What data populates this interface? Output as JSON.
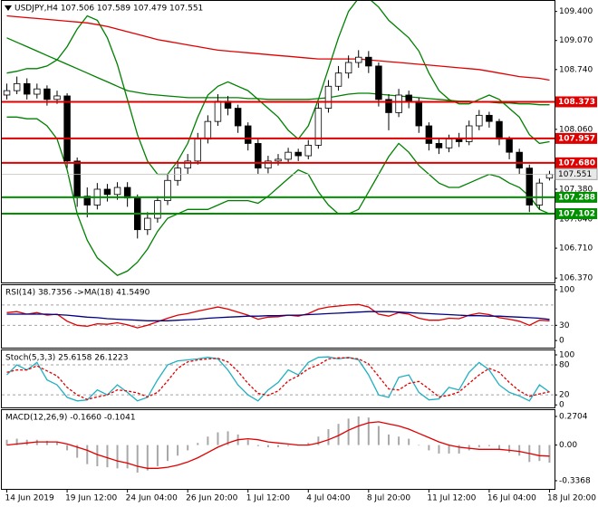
{
  "chart_data": [
    {
      "type": "candlestick",
      "title": "USDJPY,H4  107.506 107.589 107.479 107.551",
      "ylim": [
        106.32,
        109.52
      ],
      "yticks": [
        {
          "value": 109.4,
          "label": "109.400"
        },
        {
          "value": 109.07,
          "label": "109.070"
        },
        {
          "value": 108.74,
          "label": "108.740"
        },
        {
          "value": 108.06,
          "label": "108.060"
        },
        {
          "value": 107.38,
          "label": "107.380"
        },
        {
          "value": 107.04,
          "label": "107.040"
        },
        {
          "value": 106.71,
          "label": "106.710"
        },
        {
          "value": 106.37,
          "label": "106.370"
        }
      ],
      "candle_colors": {
        "up": "#ffffff",
        "down": "#000000",
        "outline": "#000000"
      },
      "open": [
        108.45,
        108.5,
        108.58,
        108.46,
        108.52,
        108.4,
        108.44,
        107.7,
        107.3,
        107.2,
        107.38,
        107.32,
        107.4,
        107.28,
        106.92,
        107.05,
        107.25,
        107.48,
        107.62,
        107.7,
        107.95,
        108.15,
        108.38,
        108.3,
        108.1,
        107.9,
        107.62,
        107.7,
        107.72,
        107.8,
        107.76,
        107.88,
        108.3,
        108.55,
        108.7,
        108.82,
        108.88,
        108.78,
        108.4,
        108.25,
        108.45,
        108.38,
        108.1,
        107.9,
        107.85,
        107.95,
        107.92,
        108.1,
        108.22,
        108.15,
        107.95,
        107.8,
        107.62,
        107.2,
        107.506
      ],
      "high": [
        108.58,
        108.66,
        108.64,
        108.58,
        108.56,
        108.5,
        108.47,
        107.74,
        107.4,
        107.45,
        107.44,
        107.46,
        107.46,
        107.32,
        107.12,
        107.3,
        107.55,
        107.7,
        107.78,
        108.02,
        108.22,
        108.46,
        108.44,
        108.34,
        108.14,
        107.95,
        107.76,
        107.78,
        107.85,
        107.84,
        107.94,
        108.36,
        108.62,
        108.78,
        108.9,
        108.96,
        108.95,
        108.82,
        108.46,
        108.52,
        108.5,
        108.42,
        108.14,
        107.96,
        108.0,
        108.02,
        108.16,
        108.28,
        108.26,
        108.18,
        107.98,
        107.84,
        107.66,
        107.5,
        107.589
      ],
      "low": [
        108.4,
        108.46,
        108.4,
        108.41,
        108.33,
        108.35,
        107.62,
        107.18,
        107.06,
        107.15,
        107.24,
        107.26,
        107.18,
        106.82,
        106.86,
        107.0,
        107.2,
        107.42,
        107.55,
        107.66,
        107.9,
        108.1,
        108.22,
        108.02,
        107.82,
        107.55,
        107.56,
        107.65,
        107.68,
        107.7,
        107.72,
        107.84,
        108.25,
        108.5,
        108.64,
        108.76,
        108.7,
        108.32,
        108.05,
        108.2,
        108.3,
        108.02,
        107.82,
        107.78,
        107.8,
        107.86,
        107.88,
        108.05,
        108.08,
        107.88,
        107.72,
        107.55,
        107.12,
        107.15,
        107.479
      ],
      "close": [
        108.5,
        108.58,
        108.46,
        108.52,
        108.4,
        108.44,
        107.7,
        107.3,
        107.2,
        107.38,
        107.32,
        107.4,
        107.28,
        106.92,
        107.05,
        107.25,
        107.48,
        107.62,
        107.7,
        107.95,
        108.15,
        108.38,
        108.3,
        108.1,
        107.9,
        107.62,
        107.7,
        107.72,
        107.8,
        107.76,
        107.88,
        108.3,
        108.55,
        108.7,
        108.82,
        108.88,
        108.78,
        108.4,
        108.25,
        108.45,
        108.38,
        108.1,
        107.9,
        107.85,
        107.95,
        107.92,
        108.1,
        108.22,
        108.15,
        107.95,
        107.8,
        107.62,
        107.2,
        107.45,
        107.551
      ],
      "series": [
        {
          "color": "#008000",
          "values": [
            108.7,
            108.72,
            108.75,
            108.75,
            108.78,
            108.85,
            109.0,
            109.2,
            109.35,
            109.3,
            109.1,
            108.8,
            108.4,
            108.0,
            107.7,
            107.55,
            107.55,
            107.7,
            107.9,
            108.2,
            108.45,
            108.55,
            108.6,
            108.55,
            108.5,
            108.4,
            108.3,
            108.2,
            108.05,
            107.95,
            108.1,
            108.4,
            108.75,
            109.1,
            109.4,
            109.55,
            109.55,
            109.45,
            109.3,
            109.2,
            109.1,
            108.95,
            108.7,
            108.5,
            108.4,
            108.35,
            108.35,
            108.4,
            108.45,
            108.4,
            108.3,
            108.2,
            108.0,
            107.9,
            107.92
          ]
        },
        {
          "color": "#008000",
          "values": [
            108.2,
            108.2,
            108.18,
            108.18,
            108.1,
            107.95,
            107.6,
            107.1,
            106.8,
            106.6,
            106.5,
            106.4,
            106.45,
            106.55,
            106.7,
            106.9,
            107.05,
            107.1,
            107.15,
            107.15,
            107.15,
            107.2,
            107.25,
            107.25,
            107.25,
            107.22,
            107.3,
            107.4,
            107.5,
            107.6,
            107.55,
            107.35,
            107.2,
            107.1,
            107.1,
            107.15,
            107.35,
            107.55,
            107.75,
            107.9,
            107.8,
            107.65,
            107.55,
            107.45,
            107.4,
            107.4,
            107.45,
            107.5,
            107.55,
            107.52,
            107.45,
            107.4,
            107.3,
            107.15,
            107.1
          ]
        },
        {
          "color": "#008000",
          "values": [
            109.1,
            109.05,
            109.0,
            108.95,
            108.9,
            108.85,
            108.8,
            108.75,
            108.7,
            108.65,
            108.6,
            108.55,
            108.5,
            108.48,
            108.46,
            108.45,
            108.44,
            108.43,
            108.42,
            108.42,
            108.42,
            108.42,
            108.42,
            108.42,
            108.41,
            108.41,
            108.4,
            108.4,
            108.4,
            108.4,
            108.4,
            108.41,
            108.42,
            108.44,
            108.46,
            108.47,
            108.47,
            108.46,
            108.45,
            108.44,
            108.43,
            108.42,
            108.41,
            108.4,
            108.39,
            108.38,
            108.38,
            108.37,
            108.37,
            108.36,
            108.36,
            108.35,
            108.35,
            108.34,
            108.34
          ]
        },
        {
          "color": "#e00000",
          "values": [
            109.35,
            109.34,
            109.33,
            109.32,
            109.31,
            109.3,
            109.29,
            109.28,
            109.27,
            109.25,
            109.23,
            109.2,
            109.17,
            109.14,
            109.11,
            109.08,
            109.06,
            109.04,
            109.02,
            109.0,
            108.98,
            108.96,
            108.95,
            108.94,
            108.93,
            108.92,
            108.91,
            108.9,
            108.89,
            108.88,
            108.87,
            108.86,
            108.86,
            108.86,
            108.86,
            108.86,
            108.85,
            108.84,
            108.83,
            108.82,
            108.81,
            108.8,
            108.79,
            108.78,
            108.77,
            108.76,
            108.75,
            108.74,
            108.72,
            108.7,
            108.68,
            108.66,
            108.65,
            108.64,
            108.62
          ]
        }
      ],
      "levels": [
        {
          "value": 108.373,
          "color": "#e00000"
        },
        {
          "value": 107.957,
          "color": "#e00000"
        },
        {
          "value": 107.68,
          "label": "107.680",
          "color": "#e00000"
        },
        {
          "value": 107.288,
          "color": "#009000"
        },
        {
          "value": 107.102,
          "color": "#009000"
        }
      ],
      "current_price": 107.551
    },
    {
      "type": "line",
      "title": "RSI(14) 38.7356 ->MA(18) 41.5490",
      "ylim": [
        -14,
        109
      ],
      "yticks": [
        100,
        30,
        0
      ],
      "levels": [
        {
          "value": 70,
          "color": "#a0a0a0"
        },
        {
          "value": 30,
          "color": "#a0a0a0"
        }
      ],
      "series": [
        {
          "color": "#e00000",
          "values": [
            55,
            57,
            52,
            55,
            50,
            52,
            38,
            30,
            28,
            33,
            32,
            35,
            31,
            25,
            30,
            37,
            44,
            50,
            53,
            58,
            62,
            66,
            62,
            56,
            50,
            42,
            46,
            47,
            50,
            48,
            53,
            62,
            66,
            68,
            70,
            71,
            66,
            52,
            48,
            55,
            52,
            44,
            40,
            40,
            44,
            43,
            50,
            54,
            51,
            45,
            42,
            38,
            30,
            40,
            38.7356
          ]
        },
        {
          "color": "#000080",
          "values": [
            52,
            52,
            52,
            52,
            52,
            51,
            50,
            48,
            46,
            45,
            43,
            42,
            41,
            40,
            39,
            39,
            39,
            40,
            41,
            42,
            44,
            45,
            46,
            47,
            48,
            48,
            49,
            49,
            50,
            50,
            51,
            52,
            53,
            54,
            55,
            56,
            57,
            57,
            57,
            56,
            55,
            54,
            53,
            52,
            51,
            50,
            49,
            49,
            48,
            48,
            47,
            46,
            45,
            44,
            41.549
          ]
        }
      ]
    },
    {
      "type": "line",
      "title": "Stoch(5,3,3) 25.6158 26.1223",
      "ylim": [
        -5,
        109
      ],
      "yticks": [
        100,
        80,
        20,
        0
      ],
      "levels": [
        {
          "value": 80,
          "color": "#a0a0a0"
        },
        {
          "value": 20,
          "color": "#a0a0a0"
        }
      ],
      "series": [
        {
          "color": "#20b0c0",
          "values": [
            60,
            80,
            70,
            85,
            50,
            40,
            15,
            8,
            10,
            30,
            20,
            40,
            25,
            8,
            15,
            50,
            80,
            88,
            90,
            92,
            95,
            92,
            70,
            40,
            20,
            8,
            30,
            45,
            70,
            60,
            85,
            95,
            96,
            92,
            95,
            90,
            60,
            20,
            15,
            55,
            60,
            25,
            10,
            12,
            35,
            30,
            65,
            85,
            70,
            40,
            25,
            18,
            8,
            40,
            25.6158
          ]
        },
        {
          "color": "#e00000",
          "dash": true,
          "values": [
            65,
            70,
            70,
            78,
            68,
            58,
            35,
            20,
            11,
            16,
            20,
            30,
            28,
            24,
            16,
            25,
            48,
            73,
            86,
            90,
            92,
            93,
            86,
            67,
            43,
            23,
            19,
            28,
            48,
            58,
            72,
            80,
            92,
            94,
            94,
            92,
            82,
            57,
            32,
            30,
            43,
            47,
            32,
            16,
            19,
            26,
            43,
            60,
            73,
            65,
            45,
            28,
            17,
            22,
            26.1223
          ]
        }
      ]
    },
    {
      "type": "bar",
      "title": "MACD(12,26,9) -0.1660 -0.1041",
      "ylim": [
        -0.414,
        0.33
      ],
      "yticks": [
        0.2704,
        {
          "value": 0,
          "label": "0.00"
        },
        -0.3368
      ],
      "color": "#a8a8a8",
      "values": [
        0.05,
        0.06,
        0.05,
        0.05,
        0.04,
        0.03,
        -0.05,
        -0.12,
        -0.18,
        -0.2,
        -0.21,
        -0.22,
        -0.22,
        -0.26,
        -0.24,
        -0.2,
        -0.15,
        -0.1,
        -0.05,
        0.02,
        0.08,
        0.12,
        0.13,
        0.1,
        0.05,
        -0.01,
        -0.02,
        -0.02,
        -0.01,
        0,
        0.02,
        0.08,
        0.15,
        0.2,
        0.25,
        0.27,
        0.26,
        0.18,
        0.1,
        0.08,
        0.06,
        0,
        -0.05,
        -0.08,
        -0.08,
        -0.08,
        -0.05,
        -0.02,
        -0.01,
        -0.04,
        -0.07,
        -0.1,
        -0.16,
        -0.15,
        -0.166
      ],
      "series": [
        {
          "color": "#e00000",
          "values": [
            0,
            0.01,
            0.02,
            0.03,
            0.03,
            0.03,
            0.01,
            -0.02,
            -0.05,
            -0.09,
            -0.12,
            -0.15,
            -0.17,
            -0.2,
            -0.22,
            -0.22,
            -0.21,
            -0.19,
            -0.16,
            -0.12,
            -0.07,
            -0.02,
            0.02,
            0.05,
            0.06,
            0.05,
            0.03,
            0.02,
            0.01,
            0,
            0,
            0.02,
            0.05,
            0.09,
            0.14,
            0.18,
            0.21,
            0.22,
            0.2,
            0.18,
            0.15,
            0.11,
            0.07,
            0.03,
            0,
            -0.02,
            -0.03,
            -0.04,
            -0.04,
            -0.04,
            -0.05,
            -0.06,
            -0.08,
            -0.1,
            -0.1041
          ]
        }
      ],
      "categories": [
        "14 Jun 2019",
        null,
        null,
        null,
        null,
        null,
        "19 Jun 12:00",
        null,
        null,
        null,
        null,
        null,
        "24 Jun 04:00",
        null,
        null,
        null,
        null,
        null,
        "26 Jun 20:00",
        null,
        null,
        null,
        null,
        null,
        "1 Jul 12:00",
        null,
        null,
        null,
        null,
        null,
        "4 Jul 04:00",
        null,
        null,
        null,
        null,
        null,
        "8 Jul 20:00",
        null,
        null,
        null,
        null,
        null,
        "11 Jul 12:00",
        null,
        null,
        null,
        null,
        null,
        "16 Jul 04:00",
        null,
        null,
        null,
        null,
        null,
        "18 Jul 20:00"
      ]
    }
  ]
}
